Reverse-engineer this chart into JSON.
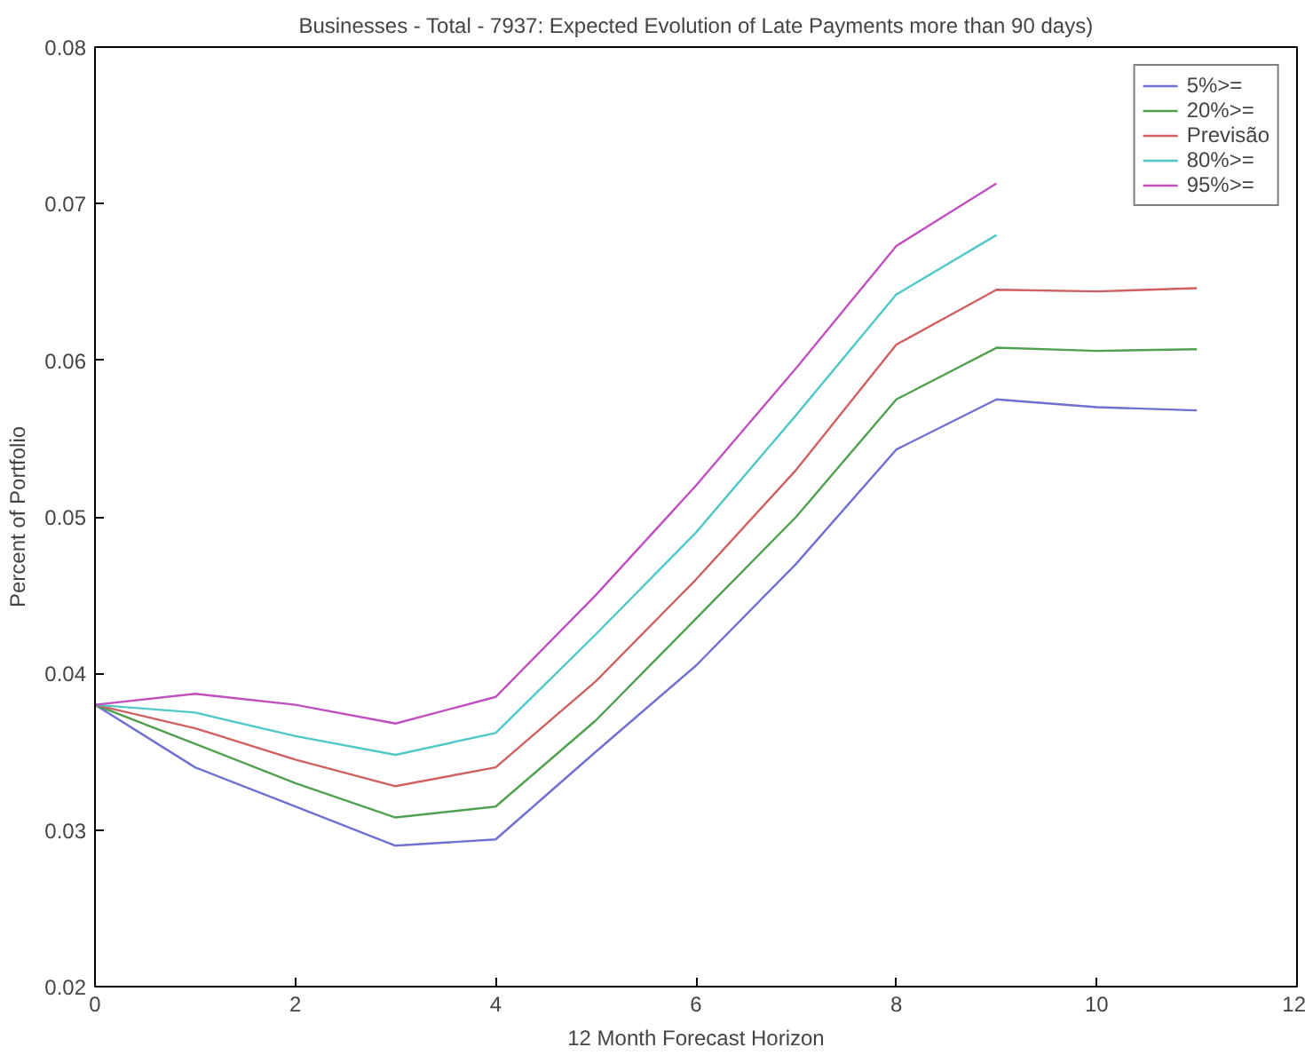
{
  "chart_data": {
    "type": "line",
    "title": "Businesses - Total - 7937: Expected Evolution of Late Payments more than 90 days)",
    "xlabel": "12 Month Forecast Horizon",
    "ylabel": "Percent of Portfolio",
    "x": [
      0,
      1,
      2,
      3,
      4,
      5,
      6,
      7,
      8,
      9,
      10,
      11
    ],
    "series": [
      {
        "name": "5%>=",
        "color": "#7070d0",
        "values": [
          0.038,
          0.034,
          0.0315,
          0.029,
          0.0294,
          0.035,
          0.0405,
          0.047,
          0.0543,
          0.0575,
          0.057,
          0.0568
        ]
      },
      {
        "name": "20%>=",
        "color": "#50a050",
        "values": [
          0.038,
          0.0355,
          0.033,
          0.0308,
          0.0315,
          0.037,
          0.0435,
          0.05,
          0.0575,
          0.0608,
          0.0606,
          0.0607
        ]
      },
      {
        "name": "Previsão",
        "color": "#d06060",
        "values": [
          0.038,
          0.0365,
          0.0345,
          0.0328,
          0.034,
          0.0395,
          0.046,
          0.053,
          0.061,
          0.0645,
          0.0644,
          0.0646
        ]
      },
      {
        "name": "80%>=",
        "color": "#50c8c8",
        "values": [
          0.038,
          0.0375,
          0.036,
          0.0348,
          0.0362,
          0.0425,
          0.049,
          0.0565,
          0.0642,
          0.068,
          null,
          null
        ]
      },
      {
        "name": "95%>=",
        "color": "#c050c0",
        "values": [
          0.038,
          0.0387,
          0.038,
          0.0368,
          0.0385,
          0.045,
          0.052,
          0.0595,
          0.0673,
          0.0713,
          null,
          null
        ]
      }
    ],
    "xlim": [
      0,
      12
    ],
    "xticks": [
      0,
      2,
      4,
      6,
      8,
      10,
      12
    ],
    "ylim": [
      0.02,
      0.08
    ],
    "yticks": [
      0.02,
      0.03,
      0.04,
      0.05,
      0.06,
      0.07,
      0.08
    ],
    "grid": false,
    "legend": "top right"
  }
}
